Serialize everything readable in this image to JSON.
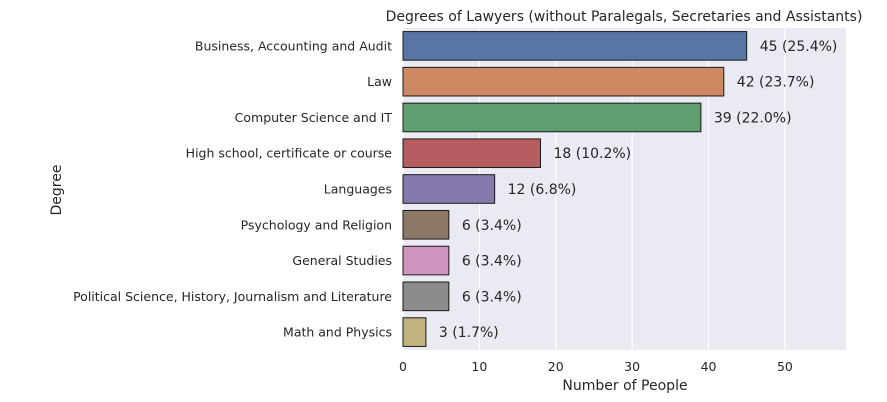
{
  "chart_data": {
    "type": "bar",
    "orientation": "horizontal",
    "title": "Degrees of Lawyers (without Paralegals, Secretaries and Assistants)",
    "xlabel": "Number of People",
    "ylabel": "Degree",
    "xlim": [
      0,
      58
    ],
    "xticks": [
      0,
      10,
      20,
      30,
      40,
      50
    ],
    "grid": true,
    "background": "#eaeaf2",
    "categories": [
      "Business, Accounting and Audit",
      "Law",
      "Computer Science and IT",
      "High school, certificate or course",
      "Languages",
      "Psychology and Religion",
      "General Studies",
      "Political Science, History, Journalism and Literature",
      "Math and Physics"
    ],
    "values": [
      45,
      42,
      39,
      18,
      12,
      6,
      6,
      6,
      3
    ],
    "labels": [
      "45 (25.4%)",
      "42 (23.7%)",
      "39 (22.0%)",
      "18 (10.2%)",
      "12 (6.8%)",
      "6 (3.4%)",
      "6 (3.4%)",
      "6 (3.4%)",
      "3 (1.7%)"
    ],
    "colors": [
      "#5875a4",
      "#cc8963",
      "#5f9e6e",
      "#b55d60",
      "#857aab",
      "#8d7866",
      "#d095bf",
      "#8c8c8c",
      "#c1b37f"
    ]
  }
}
